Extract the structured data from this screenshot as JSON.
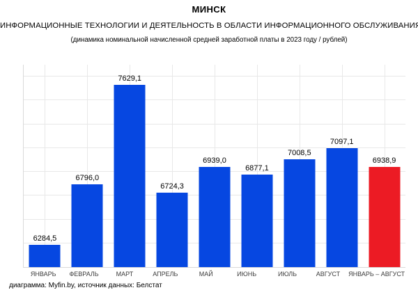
{
  "header": {
    "title": "МИНСК",
    "subtitle": "ИНФОРМАЦИОННЫЕ ТЕХНОЛОГИИ И ДЕЯТЕЛЬНОСТЬ В ОБЛАСТИ ИНФОРМАЦИОННОГО ОБСЛУЖИВАНИЯ",
    "note": "(динамика номинальной начисленной средней заработной платы в 2023 году / рублей)"
  },
  "chart_data": {
    "type": "bar",
    "title": "МИНСК",
    "subtitle": "ИНФОРМАЦИОННЫЕ ТЕХНОЛОГИИ И ДЕЯТЕЛЬНОСТЬ В ОБЛАСТИ ИНФОРМАЦИОННОГО ОБСЛУЖИВАНИЯ",
    "note": "(динамика номинальной начисленной средней заработной платы в 2023 году / рублей)",
    "categories": [
      "ЯНВАРЬ",
      "ФЕВРАЛЬ",
      "МАРТ",
      "АПРЕЛЬ",
      "МАЙ",
      "ИЮНЬ",
      "ИЮЛЬ",
      "АВГУСТ",
      "ЯНВАРЬ – АВГУСТ"
    ],
    "values": [
      6284.5,
      6796.0,
      7629.1,
      6724.3,
      6939.0,
      6877.1,
      7008.5,
      7097.1,
      6938.9
    ],
    "value_labels": [
      "6284,5",
      "6796,0",
      "7629,1",
      "6724,3",
      "6939,0",
      "6877,1",
      "7008,5",
      "7097,1",
      "6938,9"
    ],
    "highlight_index": 8,
    "xlabel": "",
    "ylabel": "",
    "ylim": [
      6100,
      7800
    ],
    "gridline_step": 200,
    "grid": true,
    "legend": "none",
    "colors": {
      "bar_default": "#0647e1",
      "bar_highlight": "#ec1b24",
      "gridline": "#e8e8e8",
      "axis_line": "#d9d9d9",
      "label_text": "#000000",
      "category_text": "#3b3b3b"
    }
  },
  "footer": {
    "credit": "диаграмма: Myfin.by, источник данных: Белстат"
  }
}
